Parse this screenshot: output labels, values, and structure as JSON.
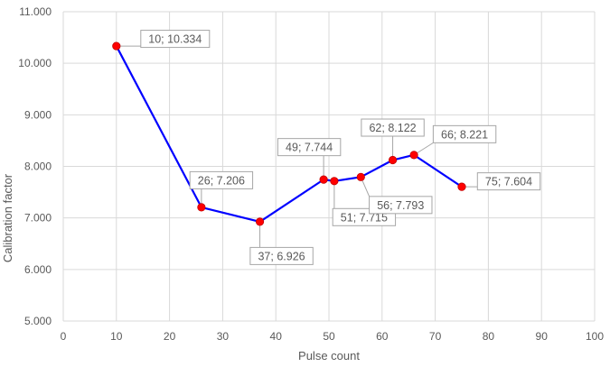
{
  "chart_data": {
    "type": "scatter",
    "title": "",
    "xlabel": "Pulse count",
    "ylabel": "Calibration factor",
    "xlim": [
      0,
      100
    ],
    "ylim": [
      5.0,
      11.0
    ],
    "x_ticks": [
      "0",
      "10",
      "20",
      "30",
      "40",
      "50",
      "60",
      "70",
      "80",
      "90",
      "100"
    ],
    "y_ticks": [
      "5.000",
      "6.000",
      "7.000",
      "8.000",
      "9.000",
      "10.000",
      "11.000"
    ],
    "grid": true,
    "legend": "none",
    "line_color": "#0000ff",
    "marker_color": "#ff0000",
    "series": [
      {
        "x": [
          10,
          26,
          37,
          49,
          51,
          56,
          62,
          66,
          75
        ],
        "y": [
          10.334,
          7.206,
          6.926,
          7.744,
          7.715,
          7.793,
          8.122,
          8.221,
          7.604
        ],
        "labels": [
          "10; 10.334",
          "26; 7.206",
          "37; 6.926",
          "49; 7.744",
          "51; 7.715",
          "56; 7.793",
          "62; 8.122",
          "66; 8.221",
          "75; 7.604"
        ]
      }
    ]
  }
}
